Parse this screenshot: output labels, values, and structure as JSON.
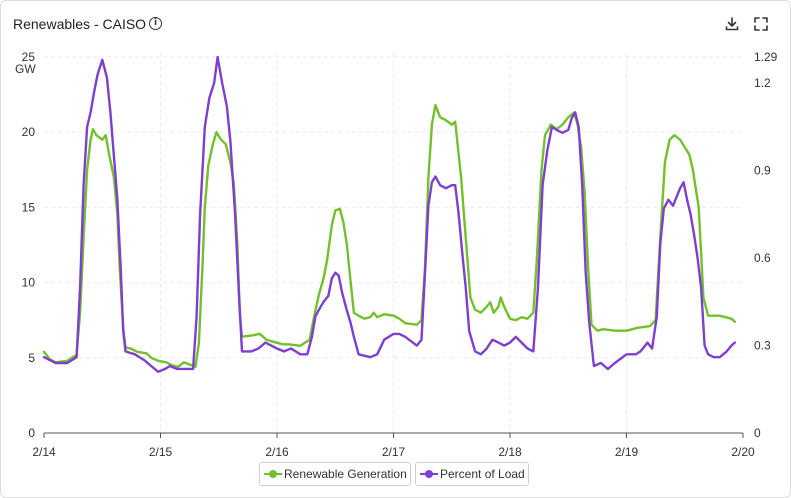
{
  "header": {
    "title": "Renewables - CAISO",
    "info_icon": "info-icon",
    "download_icon": "download-icon",
    "fullscreen_icon": "fullscreen-icon"
  },
  "chart_data": {
    "type": "line",
    "title": "Renewables - CAISO",
    "x_ticks": [
      "2/14",
      "2/15",
      "2/16",
      "2/17",
      "2/18",
      "2/19",
      "2/20"
    ],
    "xlim": [
      0,
      6
    ],
    "left_axis": {
      "unit": "GW",
      "ticks": [
        "0",
        "5",
        "10",
        "15",
        "20",
        "25"
      ],
      "ylim": [
        0,
        25
      ]
    },
    "right_axis": {
      "ticks": [
        "0",
        "0.3",
        "0.6",
        "0.9",
        "1.2",
        "1.29"
      ],
      "ylim": [
        0,
        1.29
      ]
    },
    "grid": true,
    "legend_position": "bottom-center",
    "series": [
      {
        "name": "Renewable Generation",
        "axis": "left",
        "color": "#72c02c",
        "points": [
          [
            0,
            5.4
          ],
          [
            0.05,
            4.9
          ],
          [
            0.1,
            4.7
          ],
          [
            0.2,
            4.8
          ],
          [
            0.28,
            5.2
          ],
          [
            0.31,
            8
          ],
          [
            0.34,
            13
          ],
          [
            0.37,
            17.5
          ],
          [
            0.4,
            19.5
          ],
          [
            0.42,
            20.2
          ],
          [
            0.45,
            19.8
          ],
          [
            0.5,
            19.5
          ],
          [
            0.53,
            19.8
          ],
          [
            0.56,
            18.5
          ],
          [
            0.6,
            17
          ],
          [
            0.63,
            14.5
          ],
          [
            0.65,
            11
          ],
          [
            0.68,
            7
          ],
          [
            0.7,
            5.7
          ],
          [
            0.75,
            5.6
          ],
          [
            0.8,
            5.4
          ],
          [
            0.88,
            5.3
          ],
          [
            0.92,
            5.0
          ],
          [
            0.98,
            4.8
          ],
          [
            1.05,
            4.7
          ],
          [
            1.1,
            4.5
          ],
          [
            1.15,
            4.4
          ],
          [
            1.2,
            4.7
          ],
          [
            1.3,
            4.4
          ],
          [
            1.33,
            6
          ],
          [
            1.36,
            11
          ],
          [
            1.38,
            15
          ],
          [
            1.41,
            17.8
          ],
          [
            1.45,
            19.2
          ],
          [
            1.48,
            20
          ],
          [
            1.52,
            19.5
          ],
          [
            1.56,
            19.2
          ],
          [
            1.6,
            18
          ],
          [
            1.63,
            16.5
          ],
          [
            1.66,
            12.5
          ],
          [
            1.68,
            8
          ],
          [
            1.7,
            6.4
          ],
          [
            1.8,
            6.5
          ],
          [
            1.85,
            6.6
          ],
          [
            1.88,
            6.4
          ],
          [
            1.91,
            6.2
          ],
          [
            2.0,
            6.0
          ],
          [
            2.05,
            5.9
          ],
          [
            2.1,
            5.9
          ],
          [
            2.2,
            5.8
          ],
          [
            2.28,
            6.2
          ],
          [
            2.32,
            7.8
          ],
          [
            2.36,
            9.2
          ],
          [
            2.4,
            10.3
          ],
          [
            2.43,
            11.5
          ],
          [
            2.47,
            13.8
          ],
          [
            2.5,
            14.8
          ],
          [
            2.54,
            14.9
          ],
          [
            2.57,
            14
          ],
          [
            2.6,
            12.5
          ],
          [
            2.63,
            10.2
          ],
          [
            2.66,
            8
          ],
          [
            2.7,
            7.8
          ],
          [
            2.75,
            7.6
          ],
          [
            2.8,
            7.7
          ],
          [
            2.83,
            8.0
          ],
          [
            2.86,
            7.7
          ],
          [
            2.92,
            7.9
          ],
          [
            3.0,
            7.8
          ],
          [
            3.05,
            7.6
          ],
          [
            3.1,
            7.3
          ],
          [
            3.2,
            7.2
          ],
          [
            3.24,
            7.5
          ],
          [
            3.27,
            11
          ],
          [
            3.3,
            17
          ],
          [
            3.33,
            20.5
          ],
          [
            3.36,
            21.8
          ],
          [
            3.4,
            21.0
          ],
          [
            3.45,
            20.8
          ],
          [
            3.5,
            20.5
          ],
          [
            3.53,
            20.7
          ],
          [
            3.56,
            18.5
          ],
          [
            3.58,
            17
          ],
          [
            3.6,
            15
          ],
          [
            3.63,
            12
          ],
          [
            3.66,
            9
          ],
          [
            3.7,
            8.2
          ],
          [
            3.75,
            8.0
          ],
          [
            3.8,
            8.4
          ],
          [
            3.83,
            8.7
          ],
          [
            3.86,
            8.0
          ],
          [
            3.9,
            8.4
          ],
          [
            3.92,
            9.0
          ],
          [
            3.95,
            8.4
          ],
          [
            4.0,
            7.6
          ],
          [
            4.05,
            7.5
          ],
          [
            4.1,
            7.7
          ],
          [
            4.15,
            7.6
          ],
          [
            4.2,
            8.0
          ],
          [
            4.23,
            11.5
          ],
          [
            4.27,
            17.5
          ],
          [
            4.3,
            19.8
          ],
          [
            4.35,
            20.5
          ],
          [
            4.4,
            20.2
          ],
          [
            4.45,
            20.5
          ],
          [
            4.5,
            21.0
          ],
          [
            4.55,
            21.3
          ],
          [
            4.58,
            20.5
          ],
          [
            4.61,
            19
          ],
          [
            4.64,
            16
          ],
          [
            4.67,
            11
          ],
          [
            4.7,
            7.2
          ],
          [
            4.75,
            6.8
          ],
          [
            4.8,
            6.9
          ],
          [
            4.9,
            6.8
          ],
          [
            5.0,
            6.8
          ],
          [
            5.1,
            7.0
          ],
          [
            5.2,
            7.1
          ],
          [
            5.25,
            7.5
          ],
          [
            5.29,
            13
          ],
          [
            5.33,
            18
          ],
          [
            5.37,
            19.5
          ],
          [
            5.41,
            19.8
          ],
          [
            5.46,
            19.5
          ],
          [
            5.5,
            19.0
          ],
          [
            5.54,
            18.5
          ],
          [
            5.57,
            17.5
          ],
          [
            5.59,
            16.5
          ],
          [
            5.62,
            15
          ],
          [
            5.64,
            12
          ],
          [
            5.66,
            9
          ],
          [
            5.7,
            7.8
          ],
          [
            5.75,
            7.8
          ],
          [
            5.8,
            7.8
          ],
          [
            5.85,
            7.7
          ],
          [
            5.9,
            7.6
          ],
          [
            5.93,
            7.4
          ]
        ]
      },
      {
        "name": "Percent of Load",
        "axis": "right",
        "color": "#7e3fd0",
        "points": [
          [
            0,
            0.26
          ],
          [
            0.05,
            0.25
          ],
          [
            0.1,
            0.24
          ],
          [
            0.2,
            0.24
          ],
          [
            0.28,
            0.26
          ],
          [
            0.31,
            0.5
          ],
          [
            0.34,
            0.85
          ],
          [
            0.37,
            1.05
          ],
          [
            0.4,
            1.1
          ],
          [
            0.43,
            1.17
          ],
          [
            0.46,
            1.23
          ],
          [
            0.5,
            1.28
          ],
          [
            0.54,
            1.22
          ],
          [
            0.57,
            1.1
          ],
          [
            0.6,
            0.95
          ],
          [
            0.63,
            0.8
          ],
          [
            0.66,
            0.55
          ],
          [
            0.68,
            0.35
          ],
          [
            0.7,
            0.28
          ],
          [
            0.78,
            0.27
          ],
          [
            0.86,
            0.25
          ],
          [
            0.92,
            0.23
          ],
          [
            0.98,
            0.21
          ],
          [
            1.04,
            0.22
          ],
          [
            1.08,
            0.23
          ],
          [
            1.14,
            0.22
          ],
          [
            1.2,
            0.22
          ],
          [
            1.28,
            0.22
          ],
          [
            1.31,
            0.4
          ],
          [
            1.34,
            0.75
          ],
          [
            1.38,
            1.05
          ],
          [
            1.42,
            1.15
          ],
          [
            1.46,
            1.2
          ],
          [
            1.49,
            1.29
          ],
          [
            1.53,
            1.2
          ],
          [
            1.57,
            1.12
          ],
          [
            1.6,
            1.0
          ],
          [
            1.64,
            0.75
          ],
          [
            1.67,
            0.5
          ],
          [
            1.7,
            0.28
          ],
          [
            1.78,
            0.28
          ],
          [
            1.84,
            0.29
          ],
          [
            1.9,
            0.31
          ],
          [
            2.0,
            0.29
          ],
          [
            2.06,
            0.28
          ],
          [
            2.12,
            0.29
          ],
          [
            2.2,
            0.27
          ],
          [
            2.26,
            0.27
          ],
          [
            2.3,
            0.33
          ],
          [
            2.33,
            0.4
          ],
          [
            2.37,
            0.43
          ],
          [
            2.4,
            0.45
          ],
          [
            2.44,
            0.47
          ],
          [
            2.47,
            0.53
          ],
          [
            2.5,
            0.55
          ],
          [
            2.53,
            0.54
          ],
          [
            2.56,
            0.48
          ],
          [
            2.6,
            0.42
          ],
          [
            2.63,
            0.38
          ],
          [
            2.66,
            0.33
          ],
          [
            2.7,
            0.27
          ],
          [
            2.8,
            0.26
          ],
          [
            2.86,
            0.27
          ],
          [
            2.92,
            0.32
          ],
          [
            3.0,
            0.34
          ],
          [
            3.05,
            0.34
          ],
          [
            3.1,
            0.33
          ],
          [
            3.2,
            0.3
          ],
          [
            3.24,
            0.32
          ],
          [
            3.27,
            0.55
          ],
          [
            3.3,
            0.78
          ],
          [
            3.33,
            0.86
          ],
          [
            3.36,
            0.88
          ],
          [
            3.4,
            0.85
          ],
          [
            3.45,
            0.84
          ],
          [
            3.5,
            0.85
          ],
          [
            3.53,
            0.85
          ],
          [
            3.56,
            0.75
          ],
          [
            3.59,
            0.62
          ],
          [
            3.62,
            0.5
          ],
          [
            3.65,
            0.35
          ],
          [
            3.7,
            0.28
          ],
          [
            3.75,
            0.27
          ],
          [
            3.8,
            0.29
          ],
          [
            3.85,
            0.32
          ],
          [
            3.9,
            0.31
          ],
          [
            3.95,
            0.3
          ],
          [
            4.0,
            0.31
          ],
          [
            4.05,
            0.33
          ],
          [
            4.1,
            0.31
          ],
          [
            4.15,
            0.29
          ],
          [
            4.2,
            0.28
          ],
          [
            4.24,
            0.5
          ],
          [
            4.28,
            0.85
          ],
          [
            4.32,
            0.97
          ],
          [
            4.36,
            1.05
          ],
          [
            4.4,
            1.04
          ],
          [
            4.45,
            1.03
          ],
          [
            4.5,
            1.04
          ],
          [
            4.53,
            1.08
          ],
          [
            4.56,
            1.1
          ],
          [
            4.59,
            1.05
          ],
          [
            4.62,
            0.85
          ],
          [
            4.65,
            0.55
          ],
          [
            4.68,
            0.38
          ],
          [
            4.72,
            0.23
          ],
          [
            4.78,
            0.24
          ],
          [
            4.84,
            0.22
          ],
          [
            4.9,
            0.24
          ],
          [
            5.0,
            0.27
          ],
          [
            5.08,
            0.27
          ],
          [
            5.12,
            0.28
          ],
          [
            5.18,
            0.31
          ],
          [
            5.22,
            0.29
          ],
          [
            5.26,
            0.4
          ],
          [
            5.29,
            0.65
          ],
          [
            5.32,
            0.77
          ],
          [
            5.36,
            0.8
          ],
          [
            5.4,
            0.78
          ],
          [
            5.43,
            0.81
          ],
          [
            5.46,
            0.84
          ],
          [
            5.49,
            0.86
          ],
          [
            5.52,
            0.8
          ],
          [
            5.55,
            0.75
          ],
          [
            5.58,
            0.68
          ],
          [
            5.61,
            0.6
          ],
          [
            5.64,
            0.5
          ],
          [
            5.67,
            0.3
          ],
          [
            5.7,
            0.27
          ],
          [
            5.75,
            0.26
          ],
          [
            5.8,
            0.26
          ],
          [
            5.86,
            0.28
          ],
          [
            5.9,
            0.3
          ],
          [
            5.93,
            0.31
          ]
        ]
      }
    ]
  }
}
